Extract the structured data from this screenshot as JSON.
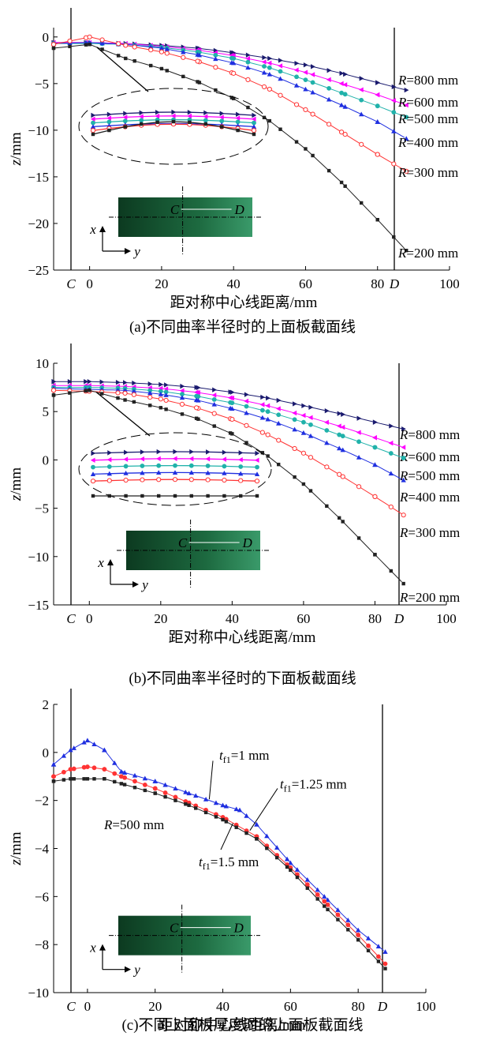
{
  "chart_data": [
    {
      "panel": "a",
      "type": "line",
      "caption": "(a)不同曲率半径时的上面板截面线",
      "xlabel": "距对称中心线距离/mm",
      "ylabel": "z/mm",
      "xlim": [
        -10,
        100
      ],
      "ylim": [
        -25,
        1
      ],
      "xticks": [
        0,
        20,
        40,
        60,
        80,
        100
      ],
      "yticks": [
        0,
        -5,
        -10,
        -15,
        -20,
        -25
      ],
      "c_label": "C",
      "d_label": "D",
      "grid": false,
      "inset_labels": {
        "c": "C",
        "d": "D",
        "x": "x",
        "y": "y"
      },
      "series": [
        {
          "name": "R=800 mm",
          "r": "R",
          "rest": "=800 mm",
          "color": "#1a1a6e",
          "marker": "triangle-right",
          "x": [
            -10,
            0,
            10,
            20,
            30,
            40,
            50,
            60,
            70,
            80,
            88
          ],
          "y": [
            -0.6,
            -0.6,
            -0.7,
            -0.9,
            -1.2,
            -1.7,
            -2.3,
            -3.0,
            -3.9,
            -4.9,
            -5.7
          ]
        },
        {
          "name": "R=600 mm",
          "r": "R",
          "rest": "=600 mm",
          "color": "#ff00ff",
          "marker": "triangle-left",
          "x": [
            -10,
            0,
            10,
            20,
            30,
            40,
            50,
            60,
            70,
            80,
            88
          ],
          "y": [
            -0.6,
            -0.6,
            -0.7,
            -1.0,
            -1.4,
            -2.0,
            -2.8,
            -3.8,
            -5.0,
            -6.2,
            -7.3
          ]
        },
        {
          "name": "R=500 mm",
          "r": "R",
          "rest": "=500 mm",
          "color": "#20b2aa",
          "marker": "circle",
          "x": [
            -10,
            0,
            10,
            20,
            30,
            40,
            50,
            60,
            70,
            80,
            88
          ],
          "y": [
            -0.7,
            -0.7,
            -0.8,
            -1.1,
            -1.6,
            -2.3,
            -3.3,
            -4.6,
            -6.0,
            -7.4,
            -8.6
          ]
        },
        {
          "name": "R=400 mm",
          "r": "R",
          "rest": "=400 mm",
          "color": "#1f2fe0",
          "marker": "triangle-up",
          "x": [
            -10,
            0,
            10,
            20,
            30,
            40,
            50,
            60,
            70,
            80,
            88
          ],
          "y": [
            -0.7,
            -0.6,
            -0.8,
            -1.2,
            -1.9,
            -2.8,
            -4.0,
            -5.6,
            -7.3,
            -9.1,
            -10.9
          ]
        },
        {
          "name": "R=300 mm",
          "r": "R",
          "rest": "=300 mm",
          "color": "#ff3333",
          "marker": "circle-open",
          "x": [
            -10,
            0,
            10,
            20,
            30,
            40,
            50,
            60,
            70,
            80,
            88
          ],
          "y": [
            -0.8,
            0.0,
            -0.9,
            -1.6,
            -2.6,
            -3.9,
            -5.6,
            -7.8,
            -10.2,
            -12.6,
            -14.4
          ]
        },
        {
          "name": "R=200 mm",
          "r": "R",
          "rest": "=200 mm",
          "color": "#222222",
          "marker": "square",
          "x": [
            -10,
            0,
            10,
            20,
            30,
            40,
            50,
            60,
            70,
            80,
            88
          ],
          "y": [
            -1.2,
            -0.8,
            -2.3,
            -3.4,
            -4.8,
            -6.6,
            -9.0,
            -12.0,
            -15.6,
            -19.6,
            -22.9
          ]
        }
      ]
    },
    {
      "panel": "b",
      "type": "line",
      "caption": "(b)不同曲率半径时的下面板截面线",
      "xlabel": "距对称中心线距离/mm",
      "ylabel": "z/mm",
      "xlim": [
        -10,
        100
      ],
      "ylim": [
        -15,
        10
      ],
      "xticks": [
        0,
        20,
        40,
        60,
        80,
        100
      ],
      "yticks": [
        10,
        5,
        0,
        -5,
        -10,
        -15
      ],
      "c_label": "C",
      "d_label": "D",
      "grid": false,
      "inset_labels": {
        "c": "C",
        "d": "D",
        "x": "x",
        "y": "y"
      },
      "series": [
        {
          "name": "R=800 mm",
          "r": "R",
          "rest": "=800 mm",
          "color": "#1a1a6e",
          "marker": "triangle-right",
          "x": [
            -10,
            0,
            10,
            20,
            30,
            40,
            50,
            60,
            70,
            80,
            88
          ],
          "y": [
            8.1,
            8.1,
            8.0,
            7.8,
            7.5,
            7.0,
            6.4,
            5.6,
            4.8,
            3.9,
            3.2
          ]
        },
        {
          "name": "R=600 mm",
          "r": "R",
          "rest": "=600 mm",
          "color": "#ff00ff",
          "marker": "triangle-left",
          "x": [
            -10,
            0,
            10,
            20,
            30,
            40,
            50,
            60,
            70,
            80,
            88
          ],
          "y": [
            7.7,
            7.7,
            7.6,
            7.4,
            7.0,
            6.4,
            5.6,
            4.6,
            3.5,
            2.3,
            1.3
          ]
        },
        {
          "name": "R=500 mm",
          "r": "R",
          "rest": "=500 mm",
          "color": "#20b2aa",
          "marker": "circle",
          "x": [
            -10,
            0,
            10,
            20,
            30,
            40,
            50,
            60,
            70,
            80,
            88
          ],
          "y": [
            7.5,
            7.5,
            7.4,
            7.1,
            6.6,
            5.9,
            5.0,
            3.9,
            2.6,
            1.3,
            0.2
          ]
        },
        {
          "name": "R=400 mm",
          "r": "R",
          "rest": "=400 mm",
          "color": "#1f2fe0",
          "marker": "triangle-up",
          "x": [
            -10,
            0,
            10,
            20,
            30,
            40,
            50,
            60,
            70,
            80,
            88
          ],
          "y": [
            7.4,
            7.3,
            7.2,
            6.8,
            6.2,
            5.3,
            4.2,
            2.8,
            1.2,
            -0.5,
            -2.1
          ]
        },
        {
          "name": "R=300 mm",
          "r": "R",
          "rest": "=300 mm",
          "color": "#ff3333",
          "marker": "circle-open",
          "x": [
            -10,
            0,
            10,
            20,
            30,
            40,
            50,
            60,
            70,
            80,
            88
          ],
          "y": [
            7.2,
            7.1,
            6.9,
            6.3,
            5.4,
            4.2,
            2.6,
            0.7,
            -1.5,
            -3.8,
            -5.7
          ]
        },
        {
          "name": "R=200 mm",
          "r": "R",
          "rest": "=200 mm",
          "color": "#222222",
          "marker": "square",
          "x": [
            -10,
            0,
            10,
            20,
            30,
            40,
            50,
            60,
            70,
            80,
            88
          ],
          "y": [
            6.7,
            7.2,
            6.2,
            5.4,
            4.3,
            2.7,
            0.4,
            -2.5,
            -6.0,
            -9.8,
            -12.8
          ]
        }
      ]
    },
    {
      "panel": "c",
      "type": "line",
      "caption": "(c)不同上面板厚度时的上面板截面线",
      "xlabel": "距对称中心线距离/mm",
      "ylabel": "z/mm",
      "xlim": [
        -10,
        100
      ],
      "ylim": [
        -10,
        2
      ],
      "xticks": [
        0,
        20,
        40,
        60,
        80,
        100
      ],
      "yticks": [
        2,
        0,
        -2,
        -4,
        -6,
        -8,
        -10
      ],
      "c_label": "C",
      "d_label": "D",
      "grid": false,
      "annotation": "R=500 mm",
      "annotation_parts": {
        "r": "R",
        "rest": "=500 mm"
      },
      "inset_labels": {
        "c": "C",
        "d": "D",
        "x": "x",
        "y": "y"
      },
      "series": [
        {
          "name": "tf1=1 mm",
          "t": "t",
          "sub": "f1",
          "rest": "=1 mm",
          "color": "#1f2fe0",
          "marker": "triangle-up",
          "x": [
            -10,
            -5,
            0,
            5,
            10,
            20,
            30,
            40,
            45,
            50,
            60,
            70,
            80,
            88
          ],
          "y": [
            -0.5,
            0.1,
            0.5,
            0.1,
            -0.8,
            -1.2,
            -1.7,
            -2.2,
            -2.4,
            -3.0,
            -4.6,
            -6.0,
            -7.4,
            -8.3
          ]
        },
        {
          "name": "tf1=1.25 mm",
          "t": "t",
          "sub": "f1",
          "rest": "=1.25 mm",
          "color": "#ff3333",
          "marker": "circle",
          "x": [
            -10,
            -5,
            0,
            5,
            10,
            20,
            30,
            40,
            50,
            60,
            70,
            80,
            88
          ],
          "y": [
            -1.0,
            -0.7,
            -0.6,
            -0.7,
            -1.0,
            -1.5,
            -2.1,
            -2.7,
            -3.5,
            -4.8,
            -6.2,
            -7.6,
            -8.8
          ]
        },
        {
          "name": "tf1=1.5 mm",
          "t": "t",
          "sub": "f1",
          "rest": "=1.5 mm",
          "color": "#222222",
          "marker": "square",
          "x": [
            -10,
            -5,
            0,
            5,
            10,
            20,
            30,
            40,
            50,
            60,
            70,
            80,
            88
          ],
          "y": [
            -1.2,
            -1.1,
            -1.1,
            -1.1,
            -1.3,
            -1.7,
            -2.2,
            -2.8,
            -3.6,
            -4.9,
            -6.4,
            -7.8,
            -9.0
          ]
        }
      ]
    }
  ]
}
